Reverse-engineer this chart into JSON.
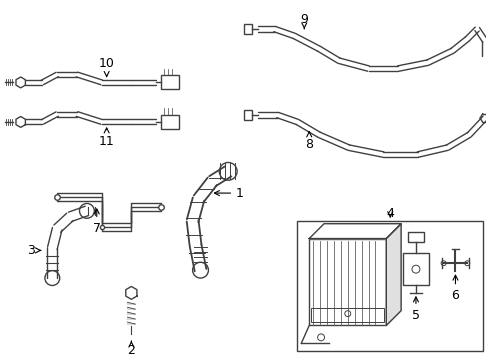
{
  "bg_color": "#ffffff",
  "line_color": "#404040",
  "lw": 1.0,
  "fig_width": 4.89,
  "fig_height": 3.6
}
